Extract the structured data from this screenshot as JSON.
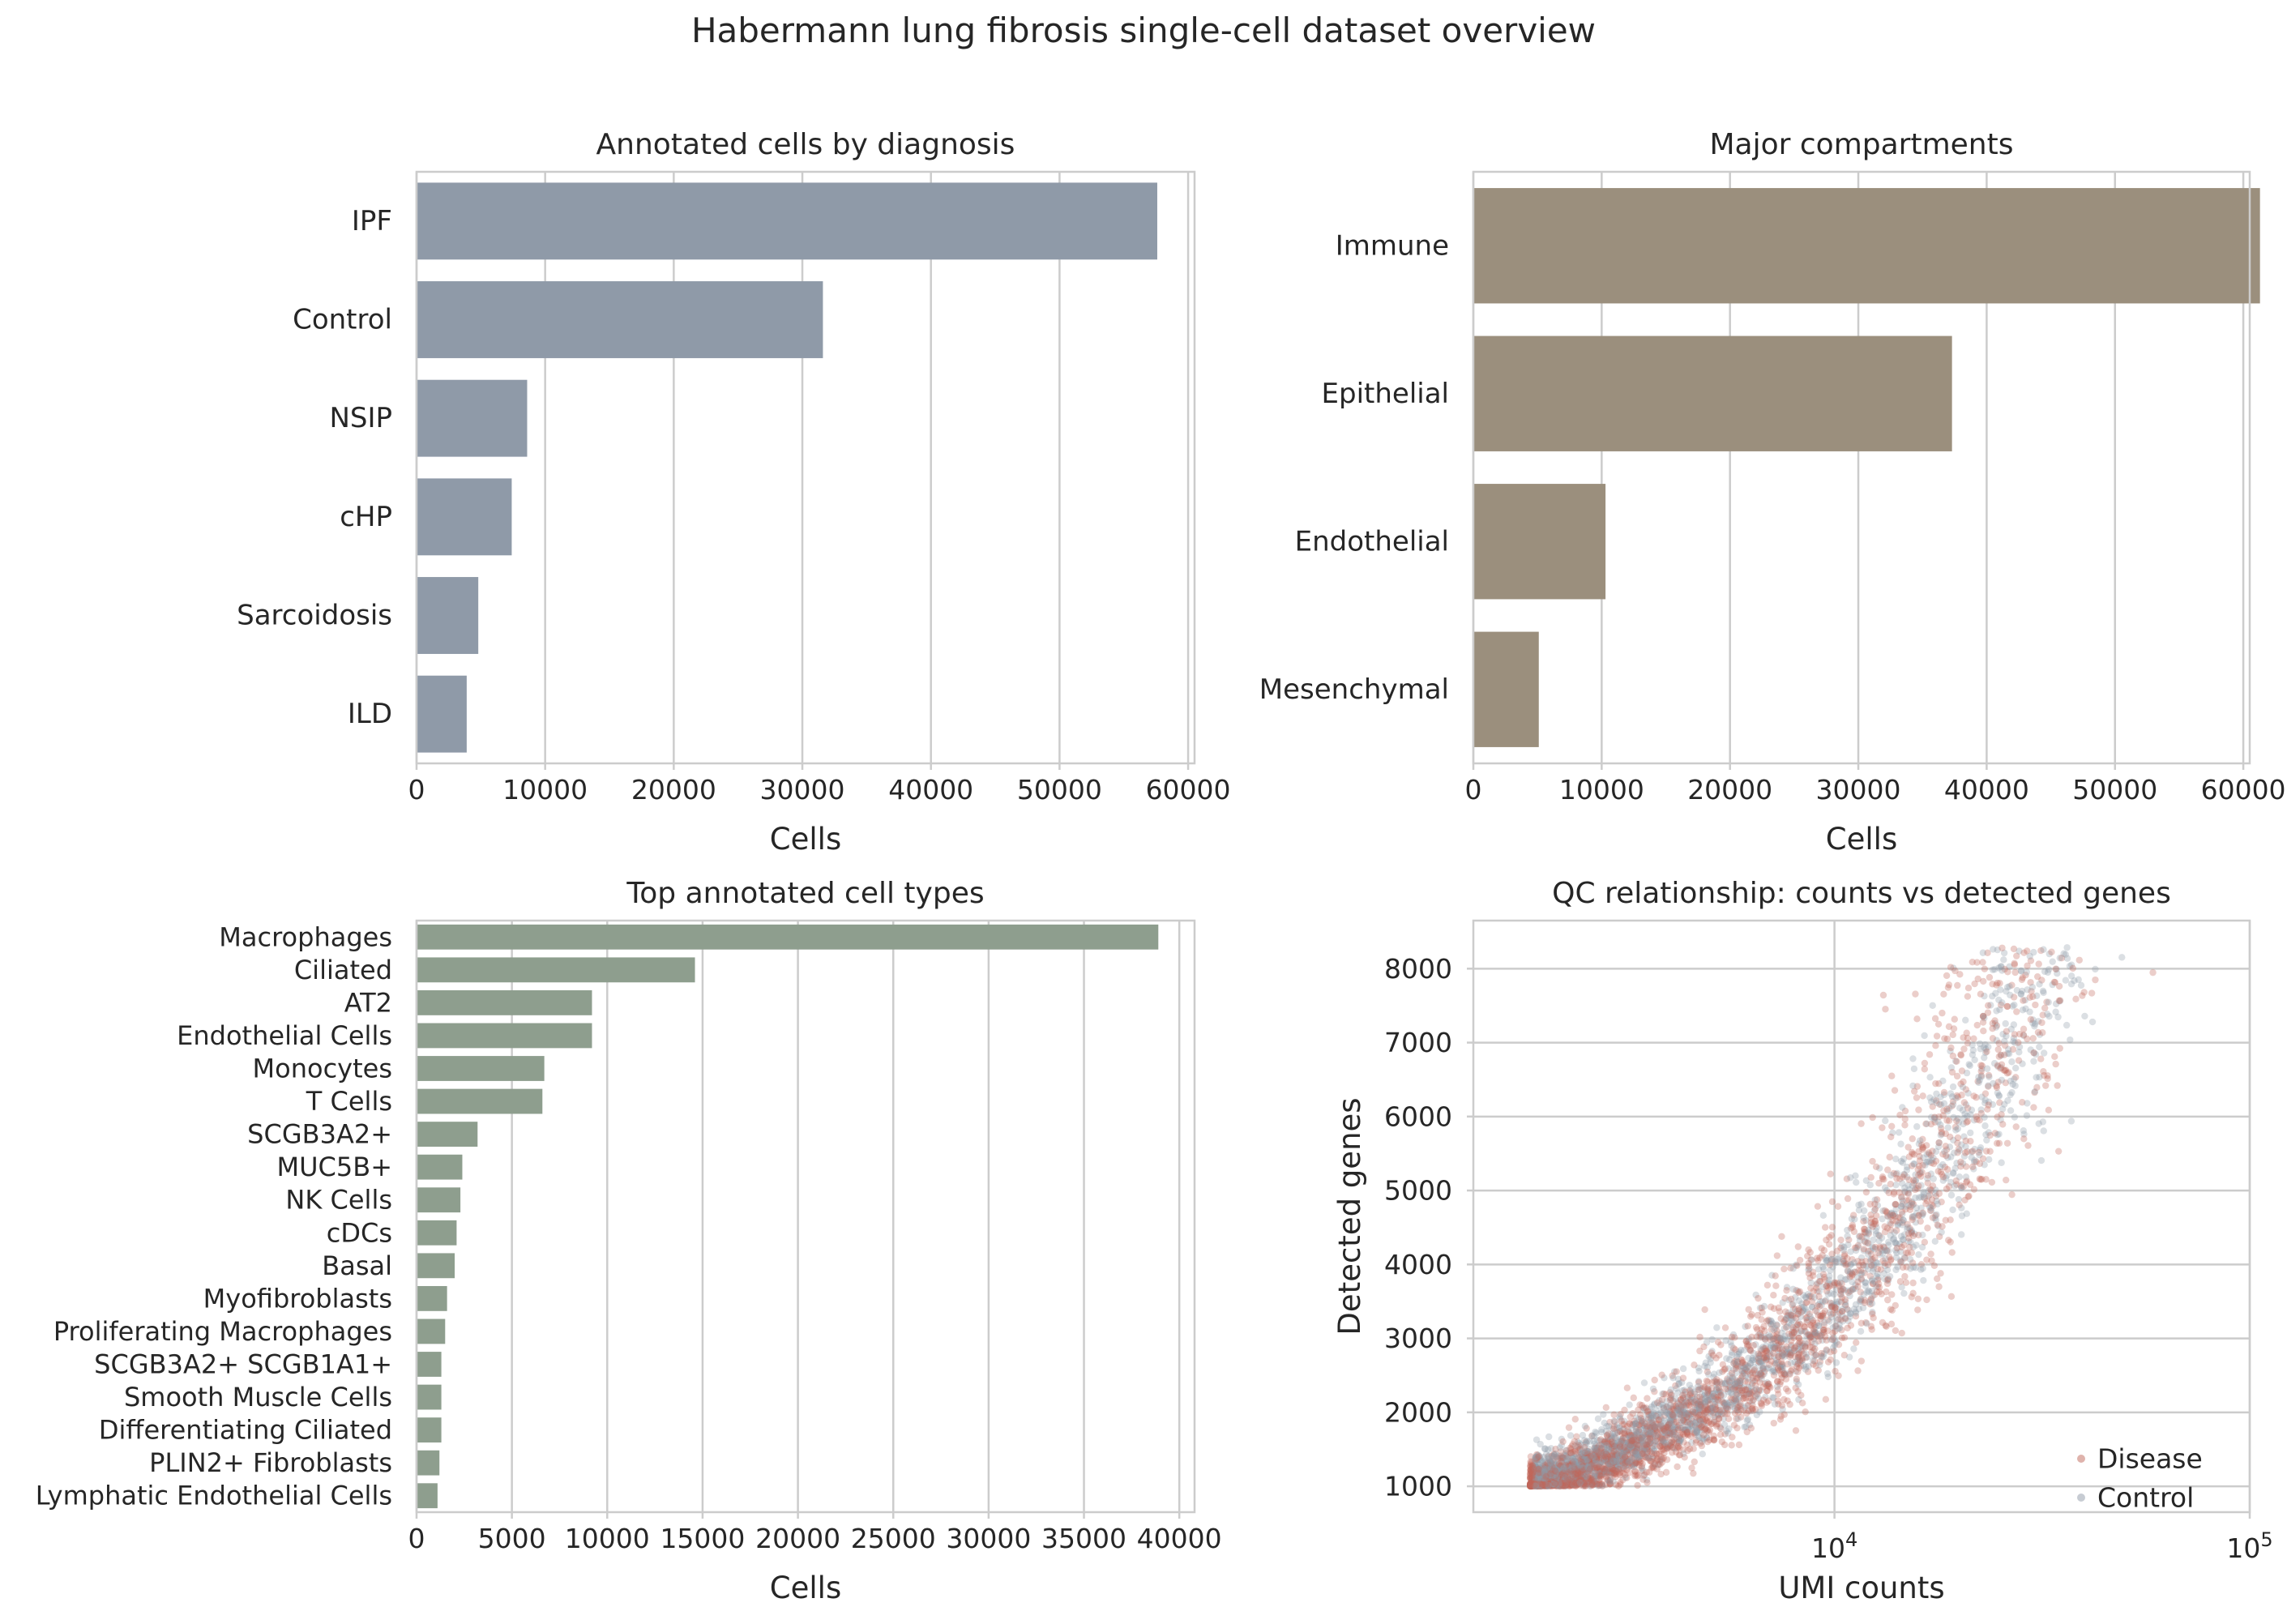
{
  "suptitle": "Habermann lung fibrosis single-cell dataset overview",
  "chart_data": [
    {
      "type": "bar",
      "orientation": "horizontal",
      "title": "Annotated cells by diagnosis",
      "xlabel": "Cells",
      "ylabel": "",
      "xlim": [
        0,
        60500
      ],
      "xticks": [
        0,
        10000,
        20000,
        30000,
        40000,
        50000,
        60000
      ],
      "categories": [
        "IPF",
        "Control",
        "NSIP",
        "cHP",
        "Sarcoidosis",
        "ILD"
      ],
      "values": [
        57600,
        31600,
        8600,
        7400,
        4800,
        3900
      ],
      "color": "#8f9aa8",
      "grid": "x"
    },
    {
      "type": "bar",
      "orientation": "horizontal",
      "title": "Major compartments",
      "xlabel": "Cells",
      "ylabel": "",
      "xlim": [
        0,
        60500
      ],
      "xticks": [
        0,
        10000,
        20000,
        30000,
        40000,
        50000,
        60000
      ],
      "categories": [
        "Immune",
        "Epithelial",
        "Endothelial",
        "Mesenchymal"
      ],
      "values": [
        61300,
        37300,
        10300,
        5100
      ],
      "color": "#9b8f7d",
      "grid": "x"
    },
    {
      "type": "bar",
      "orientation": "horizontal",
      "title": "Top annotated cell types",
      "xlabel": "Cells",
      "ylabel": "",
      "xlim": [
        0,
        40800
      ],
      "xticks": [
        0,
        5000,
        10000,
        15000,
        20000,
        25000,
        30000,
        35000,
        40000
      ],
      "categories": [
        "Macrophages",
        "Ciliated",
        "AT2",
        "Endothelial Cells",
        "Monocytes",
        "T Cells",
        "SCGB3A2+",
        "MUC5B+",
        "NK Cells",
        "cDCs",
        "Basal",
        "Myofibroblasts",
        "Proliferating Macrophages",
        "SCGB3A2+ SCGB1A1+",
        "Smooth Muscle Cells",
        "Differentiating Ciliated",
        "PLIN2+ Fibroblasts",
        "Lymphatic Endothelial Cells"
      ],
      "values": [
        38900,
        14600,
        9200,
        9200,
        6700,
        6600,
        3200,
        2400,
        2300,
        2100,
        2000,
        1600,
        1500,
        1300,
        1300,
        1300,
        1200,
        1100
      ],
      "color": "#8e9e8e",
      "grid": "x"
    },
    {
      "type": "scatter",
      "title": "QC relationship: counts vs detected genes",
      "xlabel": "UMI counts",
      "ylabel": "Detected genes",
      "xscale": "log",
      "xlim": [
        1350,
        100000
      ],
      "ylim": [
        650,
        8650
      ],
      "xticks": [
        {
          "value": 10000,
          "base": "10",
          "exp": "4"
        },
        {
          "value": 100000,
          "base": "10",
          "exp": "5"
        }
      ],
      "yticks": [
        1000,
        2000,
        3000,
        4000,
        5000,
        6000,
        7000,
        8000
      ],
      "legend": "lower-right",
      "series": [
        {
          "name": "Control",
          "color": "#8f9aa8",
          "model": {
            "a": 0.73,
            "b": 3.55,
            "sd": 0.045,
            "n": 2400,
            "xmin": 1900,
            "xmax": 55000
          }
        },
        {
          "name": "Disease",
          "color": "#c0675a",
          "model": {
            "a": 0.78,
            "b": 3.55,
            "sd": 0.055,
            "n": 3000,
            "xmin": 1850,
            "xmax": 80000
          }
        }
      ]
    }
  ]
}
